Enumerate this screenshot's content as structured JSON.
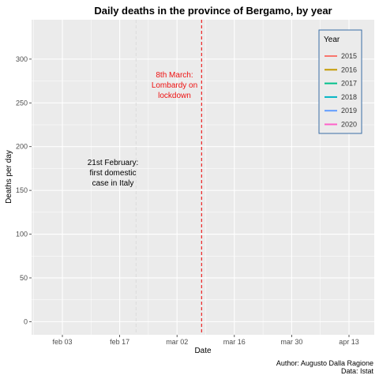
{
  "chart_data": {
    "type": "line",
    "title": "Daily deaths in the province of Bergamo, by year",
    "xlabel": "Date",
    "ylabel": "Deaths per day",
    "x_ticks": [
      "feb 03",
      "feb 17",
      "mar 02",
      "mar 16",
      "mar 30",
      "apr 13"
    ],
    "y_ticks": [
      0,
      50,
      100,
      150,
      200,
      250,
      300
    ],
    "ylim": [
      -15,
      345
    ],
    "xlim": [
      "2020-01-28",
      "2020-04-17"
    ],
    "grid": true,
    "legend": {
      "title": "Year",
      "placement": "top-right"
    },
    "series": [
      {
        "name": "2015",
        "color": "#F8766D",
        "values": []
      },
      {
        "name": "2016",
        "color": "#C49A00",
        "values": []
      },
      {
        "name": "2017",
        "color": "#00C08B",
        "values": []
      },
      {
        "name": "2018",
        "color": "#00B4C4",
        "values": []
      },
      {
        "name": "2019",
        "color": "#619CFF",
        "values": []
      },
      {
        "name": "2020",
        "color": "#FF61C9",
        "values": []
      }
    ],
    "vlines": [
      {
        "date": "2020-02-21",
        "color": "#dddddd",
        "style": "dashed"
      },
      {
        "date": "2020-03-08",
        "color": "#ee1111",
        "style": "dashed"
      }
    ],
    "annotations": [
      {
        "lines": [
          "21st February:",
          "first domestic",
          "case in Italy"
        ],
        "color": "#000000"
      },
      {
        "lines": [
          "8th March:",
          "Lombardy on",
          "lockdown"
        ],
        "color": "#ee1111"
      }
    ]
  },
  "caption": {
    "author": "Author: Augusto Dalla Ragione",
    "data": "Data: Istat"
  }
}
